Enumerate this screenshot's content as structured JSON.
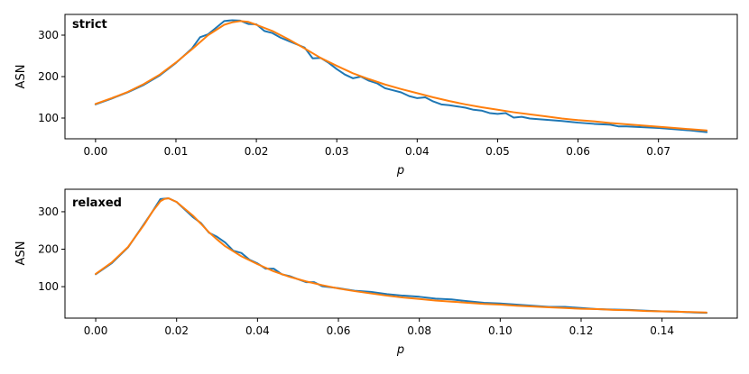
{
  "chart_data": [
    {
      "type": "line",
      "annotation": "strict",
      "xlabel": "p",
      "ylabel": "ASN",
      "xlim": [
        -0.0038,
        0.0798
      ],
      "ylim": [
        50,
        350
      ],
      "xticks": [
        0.0,
        0.01,
        0.02,
        0.03,
        0.04,
        0.05,
        0.06,
        0.07
      ],
      "xtick_labels": [
        "0.00",
        "0.01",
        "0.02",
        "0.03",
        "0.04",
        "0.05",
        "0.06",
        "0.07"
      ],
      "yticks": [
        100,
        200,
        300
      ],
      "ytick_labels": [
        "100",
        "200",
        "300"
      ],
      "grid": false,
      "series": [
        {
          "color": "#1f77b4",
          "x": [
            0.0,
            0.002,
            0.004,
            0.006,
            0.008,
            0.01,
            0.012,
            0.013,
            0.014,
            0.015,
            0.016,
            0.017,
            0.018,
            0.019,
            0.02,
            0.021,
            0.022,
            0.023,
            0.024,
            0.025,
            0.026,
            0.027,
            0.028,
            0.029,
            0.03,
            0.031,
            0.032,
            0.033,
            0.034,
            0.035,
            0.036,
            0.037,
            0.038,
            0.039,
            0.04,
            0.041,
            0.042,
            0.043,
            0.044,
            0.045,
            0.046,
            0.047,
            0.048,
            0.049,
            0.05,
            0.051,
            0.052,
            0.053,
            0.054,
            0.056,
            0.058,
            0.06,
            0.062,
            0.064,
            0.065,
            0.066,
            0.068,
            0.07,
            0.072,
            0.074,
            0.076
          ],
          "y": [
            133,
            147,
            162,
            180,
            203,
            233,
            268,
            295,
            302,
            318,
            334,
            336,
            335,
            327,
            326,
            310,
            305,
            294,
            286,
            278,
            270,
            244,
            245,
            233,
            218,
            205,
            196,
            200,
            190,
            184,
            172,
            167,
            162,
            153,
            148,
            150,
            140,
            133,
            131,
            128,
            125,
            120,
            118,
            112,
            110,
            112,
            101,
            103,
            99,
            96,
            93,
            89,
            86,
            84,
            80,
            80,
            78,
            76,
            73,
            70,
            66
          ]
        },
        {
          "color": "#ff7f0e",
          "x": [
            0.0,
            0.002,
            0.004,
            0.006,
            0.008,
            0.01,
            0.012,
            0.014,
            0.016,
            0.017,
            0.018,
            0.019,
            0.02,
            0.022,
            0.024,
            0.026,
            0.028,
            0.03,
            0.032,
            0.034,
            0.036,
            0.038,
            0.04,
            0.042,
            0.044,
            0.046,
            0.048,
            0.05,
            0.052,
            0.054,
            0.056,
            0.058,
            0.06,
            0.062,
            0.064,
            0.066,
            0.068,
            0.07,
            0.072,
            0.074,
            0.076
          ],
          "y": [
            134,
            148,
            163,
            182,
            205,
            234,
            266,
            300,
            325,
            331,
            334,
            332,
            325,
            310,
            290,
            268,
            245,
            226,
            208,
            194,
            181,
            170,
            160,
            150,
            141,
            133,
            126,
            120,
            114,
            109,
            104,
            99,
            95,
            92,
            88,
            85,
            82,
            79,
            76,
            73,
            70
          ]
        }
      ]
    },
    {
      "type": "line",
      "annotation": "relaxed",
      "xlabel": "p",
      "ylabel": "ASN",
      "xlim": [
        -0.0076,
        0.1586
      ],
      "ylim": [
        16,
        360
      ],
      "xticks": [
        0.0,
        0.02,
        0.04,
        0.06,
        0.08,
        0.1,
        0.12,
        0.14
      ],
      "xtick_labels": [
        "0.00",
        "0.02",
        "0.04",
        "0.06",
        "0.08",
        "0.10",
        "0.12",
        "0.14"
      ],
      "yticks": [
        100,
        200,
        300
      ],
      "ytick_labels": [
        "100",
        "200",
        "300"
      ],
      "grid": false,
      "series": [
        {
          "color": "#1f77b4",
          "x": [
            0.0,
            0.004,
            0.008,
            0.012,
            0.014,
            0.016,
            0.018,
            0.02,
            0.022,
            0.024,
            0.026,
            0.028,
            0.03,
            0.032,
            0.034,
            0.036,
            0.038,
            0.04,
            0.042,
            0.044,
            0.046,
            0.048,
            0.05,
            0.052,
            0.054,
            0.056,
            0.06,
            0.064,
            0.068,
            0.072,
            0.076,
            0.08,
            0.084,
            0.088,
            0.092,
            0.096,
            0.1,
            0.104,
            0.108,
            0.112,
            0.116,
            0.12,
            0.124,
            0.128,
            0.132,
            0.136,
            0.14,
            0.144,
            0.148,
            0.151
          ],
          "y": [
            133,
            163,
            205,
            268,
            300,
            334,
            336,
            326,
            306,
            286,
            270,
            244,
            233,
            218,
            196,
            190,
            172,
            162,
            148,
            148,
            133,
            128,
            120,
            112,
            112,
            101,
            96,
            89,
            86,
            80,
            76,
            73,
            68,
            66,
            61,
            57,
            55,
            52,
            49,
            46,
            46,
            43,
            40,
            39,
            38,
            36,
            34,
            33,
            31,
            30
          ]
        },
        {
          "color": "#ff7f0e",
          "x": [
            0.0,
            0.004,
            0.008,
            0.012,
            0.014,
            0.016,
            0.017,
            0.018,
            0.02,
            0.022,
            0.024,
            0.026,
            0.028,
            0.03,
            0.032,
            0.036,
            0.04,
            0.044,
            0.048,
            0.052,
            0.056,
            0.06,
            0.064,
            0.068,
            0.072,
            0.076,
            0.08,
            0.084,
            0.088,
            0.092,
            0.096,
            0.1,
            0.104,
            0.108,
            0.112,
            0.116,
            0.12,
            0.124,
            0.128,
            0.132,
            0.136,
            0.14,
            0.144,
            0.148,
            0.151
          ],
          "y": [
            134,
            165,
            206,
            266,
            300,
            328,
            334,
            336,
            326,
            308,
            290,
            268,
            245,
            226,
            208,
            181,
            160,
            141,
            126,
            114,
            104,
            95,
            88,
            82,
            76,
            71,
            67,
            63,
            60,
            57,
            54,
            52,
            49,
            47,
            45,
            43,
            41,
            40,
            38,
            37,
            35,
            34,
            33,
            32,
            31
          ]
        }
      ]
    }
  ]
}
